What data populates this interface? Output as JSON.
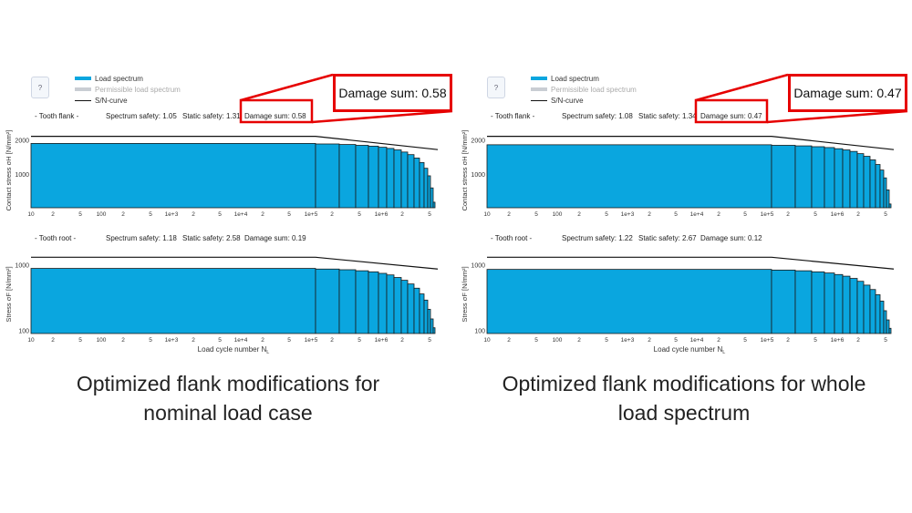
{
  "legend": {
    "help_label": "?",
    "items": [
      {
        "label": "Load spectrum",
        "color": "#0aa6df"
      },
      {
        "label": "Permissible load spectrum",
        "color": "#c9cdd3"
      },
      {
        "label": "S/N-curve",
        "color": "#111111"
      }
    ]
  },
  "colors": {
    "bar_fill": "#0aa6df",
    "bar_stroke": "#1a1a1a",
    "sn_curve": "#111111",
    "callout": "#e60000"
  },
  "xlabel_shared": "Load cycle number N",
  "xlabel_subscript": "L",
  "chart_data": [
    {
      "type": "bar",
      "panel": "left",
      "section": "Tooth flank",
      "section_label": "- Tooth flank -",
      "stats": {
        "spectrum_safety": "Spectrum safety: 1.05",
        "static_safety": "Static safety: 1.31",
        "damage_sum": "Damage sum: 0.58"
      },
      "ylabel": "Contact stress σH [N/mm²]",
      "yscale": "log",
      "ylim": [
        500,
        2300
      ],
      "yticks": [
        {
          "v": 1000,
          "label": "1000"
        },
        {
          "v": 2000,
          "label": "2000"
        }
      ],
      "xscale": "log",
      "xlim": [
        10,
        1000000
      ],
      "xtick_labels": [
        "10",
        "2",
        "5",
        "100",
        "2",
        "5",
        "1e+3",
        "2",
        "5",
        "1e+4",
        "2",
        "5",
        "1e+5",
        "2",
        "5",
        "1e+6",
        "2",
        "5"
      ],
      "spectrum": [
        1860,
        1840,
        1820,
        1790,
        1760,
        1720,
        1680,
        1630,
        1560,
        1480,
        1380,
        1260,
        1120,
        960,
        750,
        560
      ],
      "sn_curve": [
        [
          10,
          2150
        ],
        [
          100000,
          2150
        ],
        [
          1000000,
          1640
        ]
      ]
    },
    {
      "type": "bar",
      "panel": "left",
      "section": "Tooth root",
      "section_label": "- Tooth root -",
      "stats": {
        "spectrum_safety": "Spectrum safety: 1.18",
        "static_safety": "Static safety: 2.58",
        "damage_sum": "Damage sum: 0.19"
      },
      "ylabel": "Stress σF [N/mm²]",
      "yscale": "log",
      "ylim": [
        90,
        1400
      ],
      "yticks": [
        {
          "v": 100,
          "label": "100"
        },
        {
          "v": 1000,
          "label": "1000"
        }
      ],
      "xscale": "log",
      "xlim": [
        10,
        1000000
      ],
      "xtick_labels": [
        "10",
        "2",
        "5",
        "100",
        "2",
        "5",
        "1e+3",
        "2",
        "5",
        "1e+4",
        "2",
        "5",
        "1e+5",
        "2",
        "5",
        "1e+6",
        "2",
        "5"
      ],
      "spectrum": [
        880,
        860,
        840,
        810,
        780,
        740,
        700,
        640,
        580,
        510,
        440,
        360,
        290,
        210,
        150,
        110
      ],
      "sn_curve": [
        [
          10,
          1300
        ],
        [
          100000,
          1300
        ],
        [
          1000000,
          860
        ]
      ]
    },
    {
      "type": "bar",
      "panel": "right",
      "section": "Tooth flank",
      "section_label": "- Tooth flank -",
      "stats": {
        "spectrum_safety": "Spectrum safety: 1.08",
        "static_safety": "Static safety: 1.34",
        "damage_sum": "Damage sum: 0.47"
      },
      "ylabel": "Contact stress σH [N/mm²]",
      "yscale": "log",
      "ylim": [
        500,
        2300
      ],
      "yticks": [
        {
          "v": 1000,
          "label": "1000"
        },
        {
          "v": 2000,
          "label": "2000"
        }
      ],
      "xscale": "log",
      "xlim": [
        10,
        1000000
      ],
      "xtick_labels": [
        "10",
        "2",
        "5",
        "100",
        "2",
        "5",
        "1e+3",
        "2",
        "5",
        "1e+4",
        "2",
        "5",
        "1e+5",
        "2",
        "5",
        "1e+6",
        "2",
        "5"
      ],
      "spectrum": [
        1810,
        1790,
        1770,
        1740,
        1710,
        1670,
        1630,
        1580,
        1510,
        1430,
        1330,
        1210,
        1080,
        920,
        720,
        540
      ],
      "sn_curve": [
        [
          10,
          2150
        ],
        [
          100000,
          2150
        ],
        [
          1000000,
          1640
        ]
      ]
    },
    {
      "type": "bar",
      "panel": "right",
      "section": "Tooth root",
      "section_label": "- Tooth root -",
      "stats": {
        "spectrum_safety": "Spectrum safety: 1.22",
        "static_safety": "Static safety: 2.67",
        "damage_sum": "Damage sum: 0.12"
      },
      "ylabel": "Stress σF [N/mm²]",
      "yscale": "log",
      "ylim": [
        90,
        1400
      ],
      "yticks": [
        {
          "v": 100,
          "label": "100"
        },
        {
          "v": 1000,
          "label": "1000"
        }
      ],
      "xscale": "log",
      "xlim": [
        10,
        1000000
      ],
      "xtick_labels": [
        "10",
        "2",
        "5",
        "100",
        "2",
        "5",
        "1e+3",
        "2",
        "5",
        "1e+4",
        "2",
        "5",
        "1e+5",
        "2",
        "5",
        "1e+6",
        "2",
        "5"
      ],
      "spectrum": [
        850,
        830,
        810,
        780,
        750,
        710,
        670,
        620,
        560,
        490,
        420,
        350,
        280,
        200,
        145,
        108
      ],
      "sn_curve": [
        [
          10,
          1300
        ],
        [
          100000,
          1300
        ],
        [
          1000000,
          860
        ]
      ]
    }
  ],
  "callouts": {
    "left": "Damage sum: 0.58",
    "right": "Damage sum: 0.47"
  },
  "captions": {
    "left_line1": "Optimized flank modifications for",
    "left_line2": "nominal load case",
    "right_line1": "Optimized flank modifications for whole",
    "right_line2": "load spectrum"
  }
}
